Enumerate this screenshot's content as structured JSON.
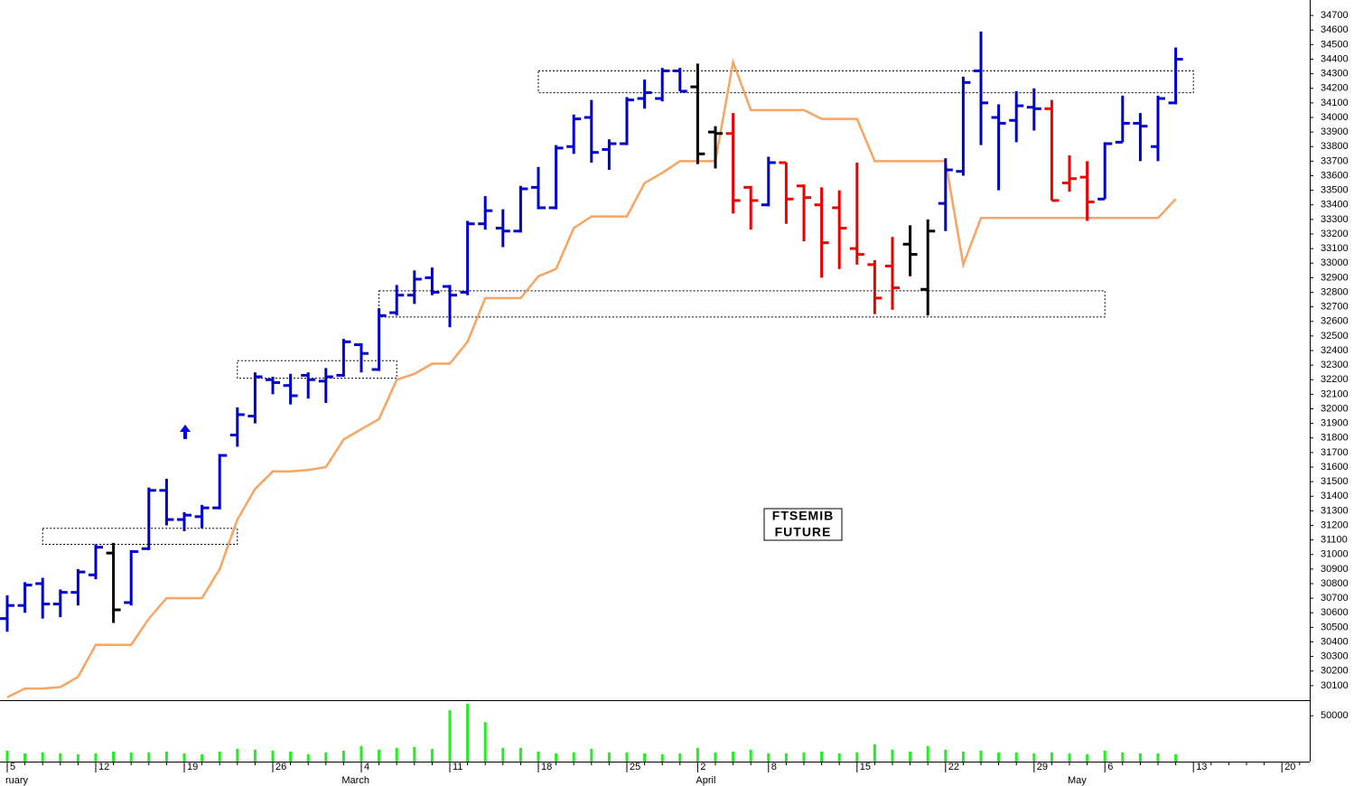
{
  "chart_data": {
    "type": "ohlc",
    "categories": [
      "5",
      null,
      null,
      null,
      null,
      "12",
      null,
      null,
      null,
      null,
      "19",
      null,
      null,
      null,
      null,
      "26",
      null,
      null,
      null,
      null,
      "4",
      null,
      null,
      null,
      null,
      "11",
      null,
      null,
      null,
      null,
      "18",
      null,
      null,
      null,
      null,
      "25",
      null,
      null,
      null,
      "2",
      null,
      null,
      null,
      "8",
      null,
      null,
      null,
      null,
      "15",
      null,
      null,
      null,
      null,
      "22",
      null,
      null,
      null,
      null,
      "29",
      null,
      null,
      null,
      "6",
      null,
      null,
      null,
      null,
      "13",
      null,
      null,
      null,
      null,
      "20",
      null
    ],
    "month_categories": [
      "ruary",
      null,
      null,
      null,
      null,
      null,
      null,
      null,
      null,
      null,
      null,
      null,
      null,
      null,
      null,
      null,
      null,
      null,
      null,
      "March",
      null,
      null,
      null,
      null,
      null,
      null,
      null,
      null,
      null,
      null,
      null,
      null,
      null,
      null,
      null,
      null,
      null,
      null,
      null,
      "April",
      null,
      null,
      null,
      null,
      null,
      null,
      null,
      null,
      null,
      null,
      null,
      null,
      null,
      null,
      null,
      null,
      null,
      null,
      null,
      null,
      "May",
      null,
      null,
      null,
      null,
      null,
      null,
      null,
      null,
      null,
      null,
      null,
      null,
      null
    ],
    "open": [
      30560,
      30650,
      30800,
      30660,
      30740,
      30860,
      31010,
      30670,
      31040,
      31440,
      31240,
      31260,
      31320,
      31820,
      31950,
      32200,
      32160,
      32230,
      32190,
      32230,
      32440,
      32270,
      32660,
      32780,
      32900,
      32840,
      32800,
      33270,
      33240,
      33220,
      33520,
      33380,
      33800,
      34000,
      33780,
      33820,
      34130,
      34130,
      34320,
      34210,
      33900,
      33890,
      33520,
      33400,
      33690,
      33530,
      33400,
      33380,
      33100,
      32990,
      32980,
      33130,
      32820,
      33410,
      33630,
      34320,
      34000,
      33980,
      34070,
      34060,
      33550,
      33590,
      33440,
      33830,
      33960,
      33800,
      34100,
      null,
      null,
      null,
      null,
      null,
      null,
      null
    ],
    "high": [
      30720,
      30810,
      30840,
      30760,
      30900,
      31070,
      31080,
      31030,
      31460,
      31520,
      31290,
      31340,
      31690,
      32010,
      32250,
      32220,
      32240,
      32250,
      32280,
      32480,
      32450,
      32690,
      32850,
      32950,
      32970,
      32850,
      33290,
      33460,
      33370,
      33530,
      33660,
      33810,
      34020,
      34120,
      33850,
      34140,
      34260,
      34340,
      34340,
      34370,
      33940,
      34030,
      33530,
      33730,
      33690,
      33540,
      33520,
      33500,
      33690,
      33020,
      33180,
      33260,
      33300,
      33720,
      34280,
      34590,
      34090,
      34180,
      34200,
      34120,
      33740,
      33700,
      33830,
      34150,
      34030,
      34150,
      34480,
      null,
      null,
      null,
      null,
      null,
      null,
      null
    ],
    "low": [
      30470,
      30600,
      30560,
      30570,
      30650,
      30830,
      30530,
      30650,
      31030,
      31200,
      31160,
      31180,
      31310,
      31740,
      31900,
      32100,
      32030,
      32070,
      32040,
      32220,
      32250,
      32260,
      32640,
      32720,
      32780,
      32560,
      32780,
      33230,
      33110,
      33210,
      33370,
      33370,
      33750,
      33690,
      33640,
      33810,
      34060,
      34110,
      34180,
      33680,
      33650,
      33340,
      33230,
      33390,
      33270,
      33150,
      32900,
      32960,
      32990,
      32650,
      32680,
      32910,
      32640,
      33220,
      33600,
      33810,
      33500,
      33830,
      33910,
      33430,
      33490,
      33290,
      33440,
      33830,
      33700,
      33700,
      34090,
      null,
      null,
      null,
      null,
      null,
      null,
      null
    ],
    "close": [
      30650,
      30790,
      30660,
      30740,
      30880,
      31050,
      30620,
      31020,
      31440,
      31240,
      31270,
      31320,
      31680,
      31960,
      32220,
      32180,
      32090,
      32200,
      32220,
      32460,
      32380,
      32640,
      32780,
      32890,
      32800,
      32780,
      33270,
      33360,
      33220,
      33510,
      33380,
      33790,
      33990,
      33760,
      33820,
      34120,
      34170,
      34320,
      34180,
      33750,
      33890,
      33430,
      33430,
      33690,
      33440,
      33450,
      33140,
      33240,
      33060,
      32760,
      32830,
      33060,
      33220,
      33640,
      34240,
      34100,
      33960,
      34080,
      34060,
      33430,
      33580,
      33420,
      33820,
      33960,
      33940,
      34130,
      34400,
      null,
      null,
      null,
      null,
      null,
      null,
      null
    ],
    "bar_colors": [
      "#0000cc",
      "#0000cc",
      "#0000cc",
      "#0000cc",
      "#0000cc",
      "#0000cc",
      "#000000",
      "#0000cc",
      "#0000cc",
      "#0000cc",
      "#0000cc",
      "#0000cc",
      "#0000cc",
      "#0000cc",
      "#0000cc",
      "#0000cc",
      "#0000cc",
      "#0000cc",
      "#0000cc",
      "#0000cc",
      "#0000cc",
      "#0000cc",
      "#0000cc",
      "#0000cc",
      "#0000cc",
      "#0000cc",
      "#0000cc",
      "#0000cc",
      "#0000cc",
      "#0000cc",
      "#0000cc",
      "#0000cc",
      "#0000cc",
      "#0000cc",
      "#0000cc",
      "#0000cc",
      "#0000cc",
      "#0000cc",
      "#0000cc",
      "#000000",
      "#000000",
      "#ee0000",
      "#ee0000",
      "#0000cc",
      "#ee0000",
      "#ee0000",
      "#ee0000",
      "#ee0000",
      "#ee0000",
      "#ee0000",
      "#ee0000",
      "#000000",
      "#000000",
      "#0000cc",
      "#0000cc",
      "#0000cc",
      "#0000cc",
      "#0000cc",
      "#0000cc",
      "#ee0000",
      "#ee0000",
      "#ee0000",
      "#0000cc",
      "#0000cc",
      "#0000cc",
      "#0000cc",
      "#0000cc",
      null,
      null,
      null,
      null,
      null,
      null,
      null
    ],
    "line": {
      "color": "#f8a462",
      "values": [
        30020,
        30080,
        30080,
        30090,
        30160,
        30380,
        30380,
        30380,
        30560,
        30700,
        30700,
        30700,
        30900,
        31240,
        31450,
        31570,
        31570,
        31580,
        31600,
        31790,
        31860,
        31930,
        32200,
        32240,
        32310,
        32310,
        32460,
        32760,
        32760,
        32760,
        32910,
        32960,
        33240,
        33320,
        33320,
        33320,
        33550,
        33620,
        33700,
        33700,
        33700,
        34380,
        34050,
        34050,
        34050,
        34050,
        33990,
        33990,
        33990,
        33700,
        33700,
        33700,
        33700,
        33700,
        32990,
        33310,
        33310,
        33310,
        33310,
        33310,
        33310,
        33310,
        33310,
        33310,
        33310,
        33310,
        33440,
        null,
        null,
        null,
        null,
        null,
        null,
        null
      ]
    },
    "ylim": [
      30000,
      34800
    ],
    "yticks": [
      30100,
      30200,
      30300,
      30400,
      30500,
      30600,
      30700,
      30800,
      30900,
      31000,
      31100,
      31200,
      31300,
      31400,
      31500,
      31600,
      31700,
      31800,
      31900,
      32000,
      32100,
      32200,
      32300,
      32400,
      32500,
      32600,
      32700,
      32800,
      32900,
      33000,
      33100,
      33200,
      33300,
      33400,
      33500,
      33600,
      33700,
      33800,
      33900,
      34000,
      34100,
      34200,
      34300,
      34400,
      34500,
      34600,
      34700
    ],
    "zones": [
      {
        "x": [
          2,
          13
        ],
        "y": [
          31070,
          31180
        ]
      },
      {
        "x": [
          13,
          22
        ],
        "y": [
          32210,
          32330
        ]
      },
      {
        "x": [
          21,
          62
        ],
        "y": [
          32630,
          32810
        ]
      },
      {
        "x": [
          30,
          67
        ],
        "y": [
          34170,
          34320
        ]
      }
    ],
    "label": [
      "FTSEMIB",
      "FUTURE"
    ],
    "volume": {
      "color": "#22ee22",
      "values": [
        12000,
        9000,
        10000,
        9000,
        8000,
        9000,
        11000,
        10000,
        10000,
        11000,
        9000,
        8000,
        11000,
        14000,
        13000,
        12000,
        11000,
        8000,
        10000,
        12000,
        17000,
        13000,
        15000,
        16000,
        14000,
        56000,
        63000,
        43000,
        15000,
        15000,
        11000,
        9000,
        10000,
        14000,
        10000,
        10000,
        9000,
        8000,
        9000,
        15000,
        10000,
        11000,
        13000,
        9000,
        9000,
        10000,
        11000,
        9000,
        10000,
        19000,
        13000,
        11000,
        17000,
        13000,
        11000,
        12000,
        10000,
        10000,
        9000,
        10000,
        9000,
        8000,
        12000,
        10000,
        9000,
        9000,
        8000,
        null,
        null,
        null,
        null,
        null,
        null,
        null
      ],
      "ylim": [
        0,
        65000
      ],
      "yticks": [
        50000
      ]
    }
  }
}
